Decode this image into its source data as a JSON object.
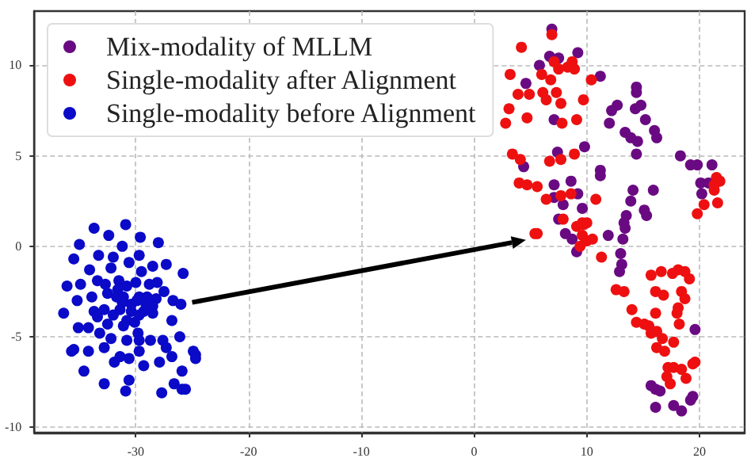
{
  "chart_data": {
    "type": "scatter",
    "xlim": [
      -39,
      24
    ],
    "ylim": [
      -10.3,
      13
    ],
    "xticks": [
      -30,
      -20,
      -10,
      0,
      10,
      20
    ],
    "yticks": [
      -10,
      -5,
      0,
      5,
      10
    ],
    "grid": true,
    "legend": "top left",
    "marker": "circle",
    "series": [
      {
        "name": "Mix-modality of MLLM",
        "color": "#6a0a82",
        "x": [
          6.9,
          6.7,
          7.5,
          9.2,
          5.8,
          4.6,
          11.2,
          7.1,
          14.4,
          14.4,
          14.3,
          14.8,
          12.7,
          12.2,
          12.0,
          15.2,
          13.4,
          13.9,
          16.0,
          16.2,
          14.5,
          14.4,
          9.8,
          7.4,
          4.4,
          11.2,
          11.2,
          8.6,
          7.1,
          7.1,
          9.2,
          7.9,
          9.6,
          14.1,
          15.9,
          13.9,
          15.1,
          15.3,
          13.5,
          18.3,
          19.2,
          19.8,
          21.1,
          20.1,
          20.8,
          20.2,
          13.4,
          7.5,
          8.1,
          8.7,
          9.1,
          11.9,
          13.3,
          13.2,
          13.0,
          13.1,
          12.9,
          19.6,
          15.7,
          16.1,
          16.5,
          16.1,
          17.7,
          18.4,
          19.2,
          19.4
        ],
        "values": [
          12.0,
          10.5,
          10.4,
          10.7,
          10.0,
          9.0,
          9.4,
          7.0,
          8.8,
          8.5,
          7.6,
          7.8,
          7.8,
          7.5,
          6.8,
          7.0,
          6.3,
          6.0,
          6.4,
          6.0,
          5.8,
          5.1,
          5.5,
          5.2,
          4.4,
          4.2,
          3.9,
          3.6,
          3.4,
          2.7,
          2.9,
          2.3,
          2.1,
          3.1,
          3.1,
          2.5,
          2.0,
          1.7,
          1.7,
          5.0,
          4.5,
          4.5,
          4.5,
          3.5,
          3.5,
          2.9,
          1.0,
          1.5,
          0.7,
          0.4,
          -0.3,
          0.6,
          1.3,
          0.4,
          -0.4,
          -1.0,
          -1.4,
          -4.6,
          -7.7,
          -7.9,
          -8.0,
          -8.9,
          -8.8,
          -9.1,
          -8.5,
          -8.3
        ]
      },
      {
        "name": "Single-modality after Alignment",
        "color": "#ee1010",
        "x": [
          6.9,
          4.2,
          8.7,
          7.1,
          7.5,
          8.3,
          8.9,
          3.2,
          6.0,
          6.8,
          10.4,
          3.9,
          4.9,
          6.1,
          7.3,
          6.4,
          7.7,
          9.7,
          3.1,
          2.8,
          4.7,
          7.8,
          9.1,
          3.4,
          4.1,
          6.7,
          7.7,
          8.9,
          4.0,
          4.7,
          5.6,
          6.4,
          7.7,
          8.6,
          10.8,
          21.5,
          21.8,
          21.3,
          21.3,
          20.4,
          21.6,
          19.8,
          7.9,
          9.6,
          10.0,
          9.1,
          5.6,
          5.4,
          9.7,
          9.6,
          10.0,
          9.4,
          10.5,
          11.3,
          12.6,
          13.3,
          15.7,
          16.6,
          17.6,
          18.1,
          18.7,
          19.1,
          16.1,
          16.8,
          18.4,
          18.7,
          18.1,
          14.0,
          16.1,
          18.0,
          14.4,
          15.1,
          15.5,
          16.2,
          18.2,
          15.7,
          16.7,
          17.7,
          16.2,
          16.9,
          17.7,
          17.2,
          18.4,
          17.1,
          18.8,
          19.4,
          19.6,
          17.4
        ],
        "values": [
          11.7,
          11.0,
          10.2,
          10.2,
          9.8,
          9.9,
          9.8,
          9.5,
          9.5,
          9.2,
          9.2,
          8.4,
          8.4,
          8.5,
          8.5,
          8.1,
          7.9,
          8.1,
          7.6,
          6.8,
          7.1,
          6.8,
          7.0,
          5.1,
          4.8,
          4.7,
          4.8,
          5.1,
          3.5,
          3.4,
          3.3,
          2.6,
          2.8,
          2.9,
          2.6,
          3.8,
          3.6,
          3.4,
          3.1,
          2.3,
          2.4,
          1.8,
          1.5,
          1.3,
          1.3,
          1.1,
          0.7,
          0.7,
          1.2,
          0.6,
          0.3,
          0.0,
          0.4,
          -0.6,
          -2.4,
          -2.5,
          -1.6,
          -1.4,
          -1.5,
          -1.3,
          -1.4,
          -1.8,
          -2.5,
          -2.7,
          -2.5,
          -2.9,
          -3.4,
          -3.5,
          -3.7,
          -3.7,
          -4.2,
          -4.3,
          -4.4,
          -4.7,
          -4.3,
          -4.8,
          -5.1,
          -5.3,
          -5.6,
          -5.8,
          -6.7,
          -6.7,
          -6.8,
          -7.2,
          -7.3,
          -6.5,
          -6.4,
          -7.6
        ]
      },
      {
        "name": "Single-modality before Alignment",
        "color": "#0a0ac8",
        "x": [
          -30.9,
          -33.7,
          -35.0,
          -32.4,
          -29.6,
          -28.0,
          -31.2,
          -29.7,
          -33.3,
          -35.5,
          -32.0,
          -30.6,
          -27.3,
          -25.8,
          -28.5,
          -34.1,
          -32.2,
          -29.5,
          -33.4,
          -31.5,
          -30.0,
          -28.8,
          -28.1,
          -36.1,
          -34.9,
          -30.8,
          -32.7,
          -31.6,
          -27.5,
          -35.2,
          -33.9,
          -32.5,
          -31.1,
          -29.7,
          -29.0,
          -28.2,
          -26.7,
          -26.0,
          -36.4,
          -33.7,
          -32.8,
          -31.4,
          -30.4,
          -29.3,
          -28.5,
          -33.4,
          -32.0,
          -30.8,
          -29.7,
          -26.8,
          -32.5,
          -31.1,
          -35.1,
          -34.2,
          -33.2,
          -29.8,
          -26.1,
          -35.5,
          -35.7,
          -32.2,
          -30.8,
          -29.7,
          -28.7,
          -27.6,
          -34.2,
          -32.8,
          -31.4,
          -29.7,
          -27.3,
          -26.8,
          -24.9,
          -24.7,
          -24.7,
          -31.9,
          -30.6,
          -29.3,
          -27.9,
          -34.6,
          -32.8,
          -30.6,
          -26.6,
          -25.9,
          -30.9,
          -27.7,
          -25.9,
          -25.6,
          -29.9,
          -30.4,
          -29.1,
          -31.2,
          -30.1,
          -31.7,
          -28.5
        ],
        "values": [
          1.2,
          1.0,
          0.1,
          0.6,
          0.5,
          0.2,
          0.0,
          -0.5,
          -0.5,
          -0.7,
          -0.6,
          -0.9,
          -1.0,
          -1.5,
          -1.1,
          -1.3,
          -1.2,
          -1.4,
          -1.9,
          -1.9,
          -2.0,
          -2.1,
          -2.0,
          -2.2,
          -2.1,
          -2.2,
          -2.1,
          -2.4,
          -2.5,
          -3.0,
          -2.8,
          -2.6,
          -2.8,
          -2.8,
          -2.8,
          -2.9,
          -3.0,
          -3.2,
          -3.7,
          -3.6,
          -3.5,
          -3.5,
          -3.6,
          -3.6,
          -3.7,
          -3.9,
          -3.8,
          -4.1,
          -3.8,
          -4.1,
          -4.3,
          -4.4,
          -4.5,
          -4.5,
          -4.8,
          -4.8,
          -5.0,
          -5.7,
          -5.8,
          -5.1,
          -5.2,
          -5.2,
          -5.2,
          -5.2,
          -5.8,
          -5.6,
          -6.1,
          -5.8,
          -5.6,
          -6.1,
          -5.8,
          -6.0,
          -6.2,
          -6.4,
          -6.2,
          -6.6,
          -6.4,
          -6.9,
          -7.6,
          -7.4,
          -7.6,
          -6.9,
          -8.0,
          -8.1,
          -7.9,
          -7.9,
          -3.0,
          -3.2,
          -3.2,
          -3.1,
          -4.2,
          -2.8,
          -3.3
        ]
      }
    ]
  }
}
